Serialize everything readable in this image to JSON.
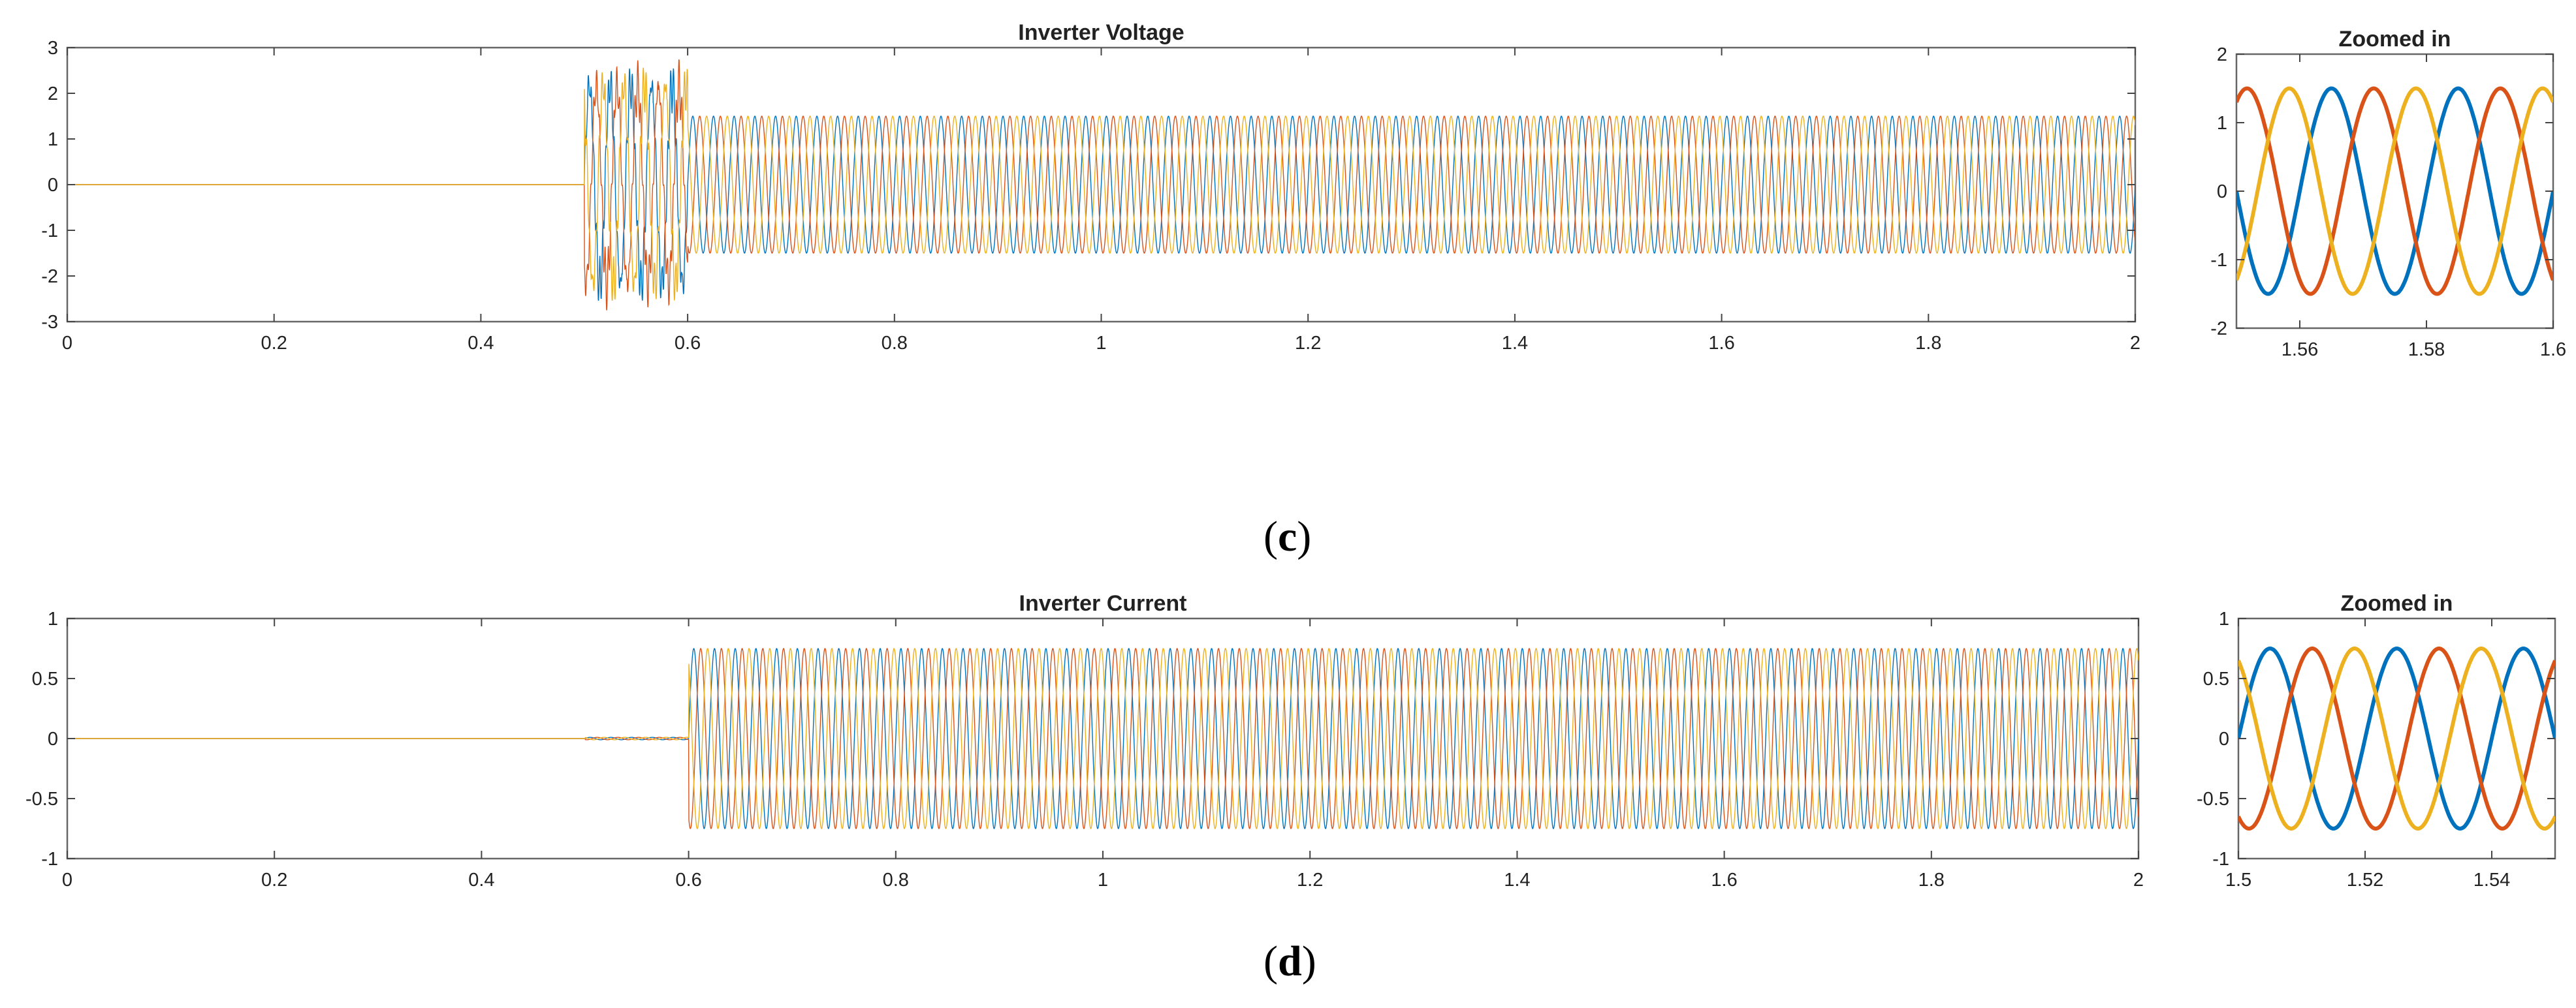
{
  "colors": {
    "phase_a": "#0072BD",
    "phase_b": "#D95319",
    "phase_c": "#EDB120",
    "axis": "#666666",
    "text": "#222222"
  },
  "panels": {
    "c": {
      "label_open": "(",
      "label_letter": "c",
      "label_close": ")"
    },
    "d": {
      "label_open": "(",
      "label_letter": "d",
      "label_close": ")"
    }
  },
  "chart_data": [
    {
      "id": "voltage_main",
      "type": "line",
      "title": "Inverter Voltage",
      "xlabel": "",
      "ylabel": "",
      "xlim": [
        0,
        2
      ],
      "ylim": [
        -3,
        3
      ],
      "x_ticks": [
        0,
        0.2,
        0.4,
        0.6,
        0.8,
        1,
        1.2,
        1.4,
        1.6,
        1.8,
        2
      ],
      "x_tick_labels": [
        "0",
        "0.2",
        "0.4",
        "0.6",
        "0.8",
        "1",
        "1.2",
        "1.4",
        "1.6",
        "1.8",
        "2"
      ],
      "y_ticks": [
        -3,
        -2,
        -1,
        0,
        1,
        2,
        3
      ],
      "y_tick_labels": [
        "-3",
        "-2",
        "-1",
        "0",
        "1",
        "2",
        "3"
      ],
      "grid": false,
      "three_phase": true,
      "phases": 3,
      "frequency_hz": 50,
      "segments": [
        {
          "t_start": 0.0,
          "t_end": 0.5,
          "amplitude": 0.0,
          "state": "zero"
        },
        {
          "t_start": 0.5,
          "t_end": 0.6,
          "amplitude": 2.4,
          "state": "transient"
        },
        {
          "t_start": 0.6,
          "t_end": 2.0,
          "amplitude": 1.5,
          "state": "steady"
        }
      ]
    },
    {
      "id": "voltage_zoom",
      "type": "line",
      "title": "Zoomed in",
      "xlabel": "",
      "ylabel": "",
      "xlim": [
        1.55,
        1.6
      ],
      "ylim": [
        -2,
        2
      ],
      "x_ticks": [
        1.56,
        1.58,
        1.6
      ],
      "x_tick_labels": [
        "1.56",
        "1.58",
        "1.6"
      ],
      "y_ticks": [
        -2,
        -1,
        0,
        1,
        2
      ],
      "y_tick_labels": [
        "-2",
        "-1",
        "0",
        "1",
        "2"
      ],
      "grid": false,
      "three_phase": true,
      "phases": 3,
      "frequency_hz": 50,
      "amplitude": 1.5
    },
    {
      "id": "current_main",
      "type": "line",
      "title": "Inverter Current",
      "xlabel": "",
      "ylabel": "",
      "xlim": [
        0,
        2
      ],
      "ylim": [
        -1,
        1
      ],
      "x_ticks": [
        0,
        0.2,
        0.4,
        0.6,
        0.8,
        1,
        1.2,
        1.4,
        1.6,
        1.8,
        2
      ],
      "x_tick_labels": [
        "0",
        "0.2",
        "0.4",
        "0.6",
        "0.8",
        "1",
        "1.2",
        "1.4",
        "1.6",
        "1.8",
        "2"
      ],
      "y_ticks": [
        -1,
        -0.5,
        0,
        0.5,
        1
      ],
      "y_tick_labels": [
        "-1",
        "-0.5",
        "0",
        "0.5",
        "1"
      ],
      "grid": false,
      "three_phase": true,
      "phases": 3,
      "frequency_hz": 50,
      "segments": [
        {
          "t_start": 0.0,
          "t_end": 0.5,
          "amplitude": 0.0,
          "state": "zero"
        },
        {
          "t_start": 0.5,
          "t_end": 0.6,
          "amplitude": 0.01,
          "state": "near-zero"
        },
        {
          "t_start": 0.6,
          "t_end": 2.0,
          "amplitude": 0.75,
          "state": "steady"
        }
      ]
    },
    {
      "id": "current_zoom",
      "type": "line",
      "title": "Zoomed in",
      "xlabel": "",
      "ylabel": "",
      "xlim": [
        1.5,
        1.55
      ],
      "ylim": [
        -1,
        1
      ],
      "x_ticks": [
        1.5,
        1.52,
        1.54
      ],
      "x_tick_labels": [
        "1.5",
        "1.52",
        "1.54"
      ],
      "y_ticks": [
        -1,
        -0.5,
        0,
        0.5,
        1
      ],
      "y_tick_labels": [
        "-1",
        "-0.5",
        "0",
        "0.5",
        "1"
      ],
      "grid": false,
      "three_phase": true,
      "phases": 3,
      "frequency_hz": 50,
      "amplitude": 0.75
    }
  ]
}
